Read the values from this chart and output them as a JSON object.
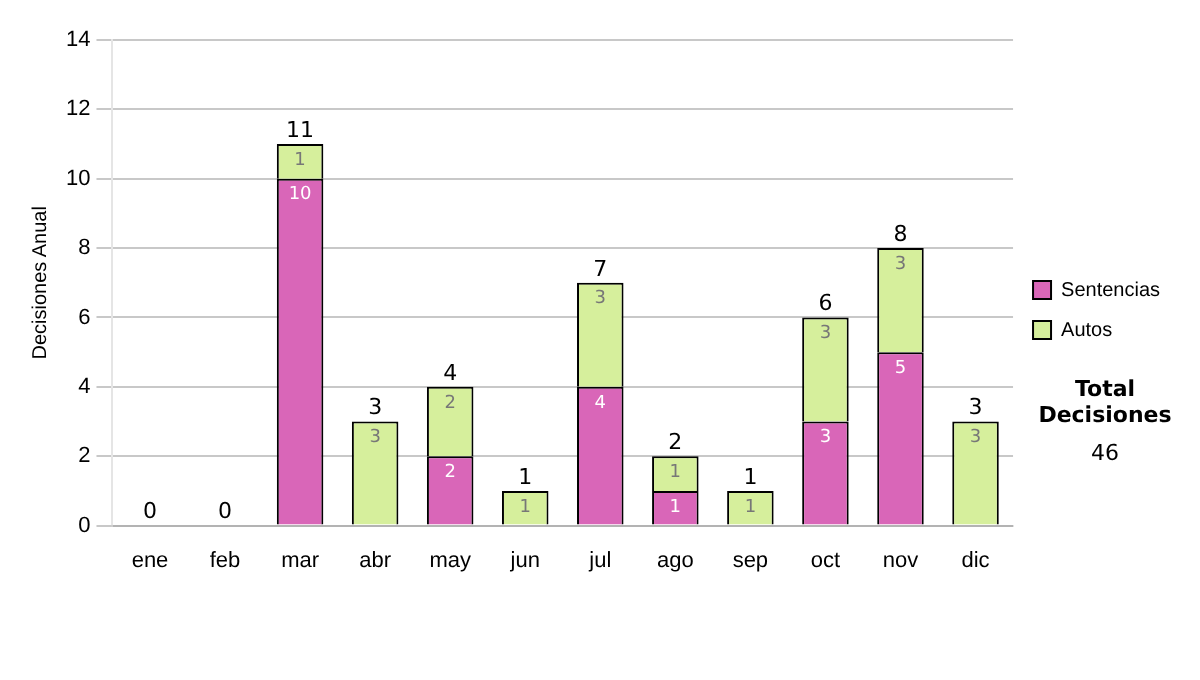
{
  "chart_data": {
    "type": "bar",
    "stacked": true,
    "ylabel": "Decisiones Anual",
    "categories": [
      "ene",
      "feb",
      "mar",
      "abr",
      "may",
      "jun",
      "jul",
      "ago",
      "sep",
      "oct",
      "nov",
      "dic"
    ],
    "series": [
      {
        "name": "Sentencias",
        "color": "#d966b8",
        "values": [
          0,
          0,
          10,
          0,
          2,
          0,
          4,
          1,
          0,
          3,
          5,
          0
        ],
        "value_labels": [
          null,
          null,
          "10",
          null,
          "2",
          null,
          "4",
          "1",
          null,
          "3",
          "5",
          null
        ]
      },
      {
        "name": "Autos",
        "color": "#d6ef9c",
        "values": [
          0,
          0,
          1,
          3,
          2,
          1,
          3,
          1,
          1,
          3,
          3,
          3
        ],
        "value_labels": [
          null,
          null,
          "1",
          "3",
          "2",
          "1",
          "3",
          "1",
          "1",
          "3",
          "3",
          "3"
        ]
      }
    ],
    "totals": [
      "0",
      "0",
      "11",
      "3",
      "4",
      "1",
      "7",
      "2",
      "1",
      "6",
      "8",
      "3"
    ],
    "ylim": [
      0,
      14
    ],
    "yticks": [
      0,
      2,
      4,
      6,
      8,
      10,
      12,
      14
    ],
    "grid": "y",
    "legend": "right",
    "annotations": [
      "Total Decisiones",
      "46"
    ]
  }
}
